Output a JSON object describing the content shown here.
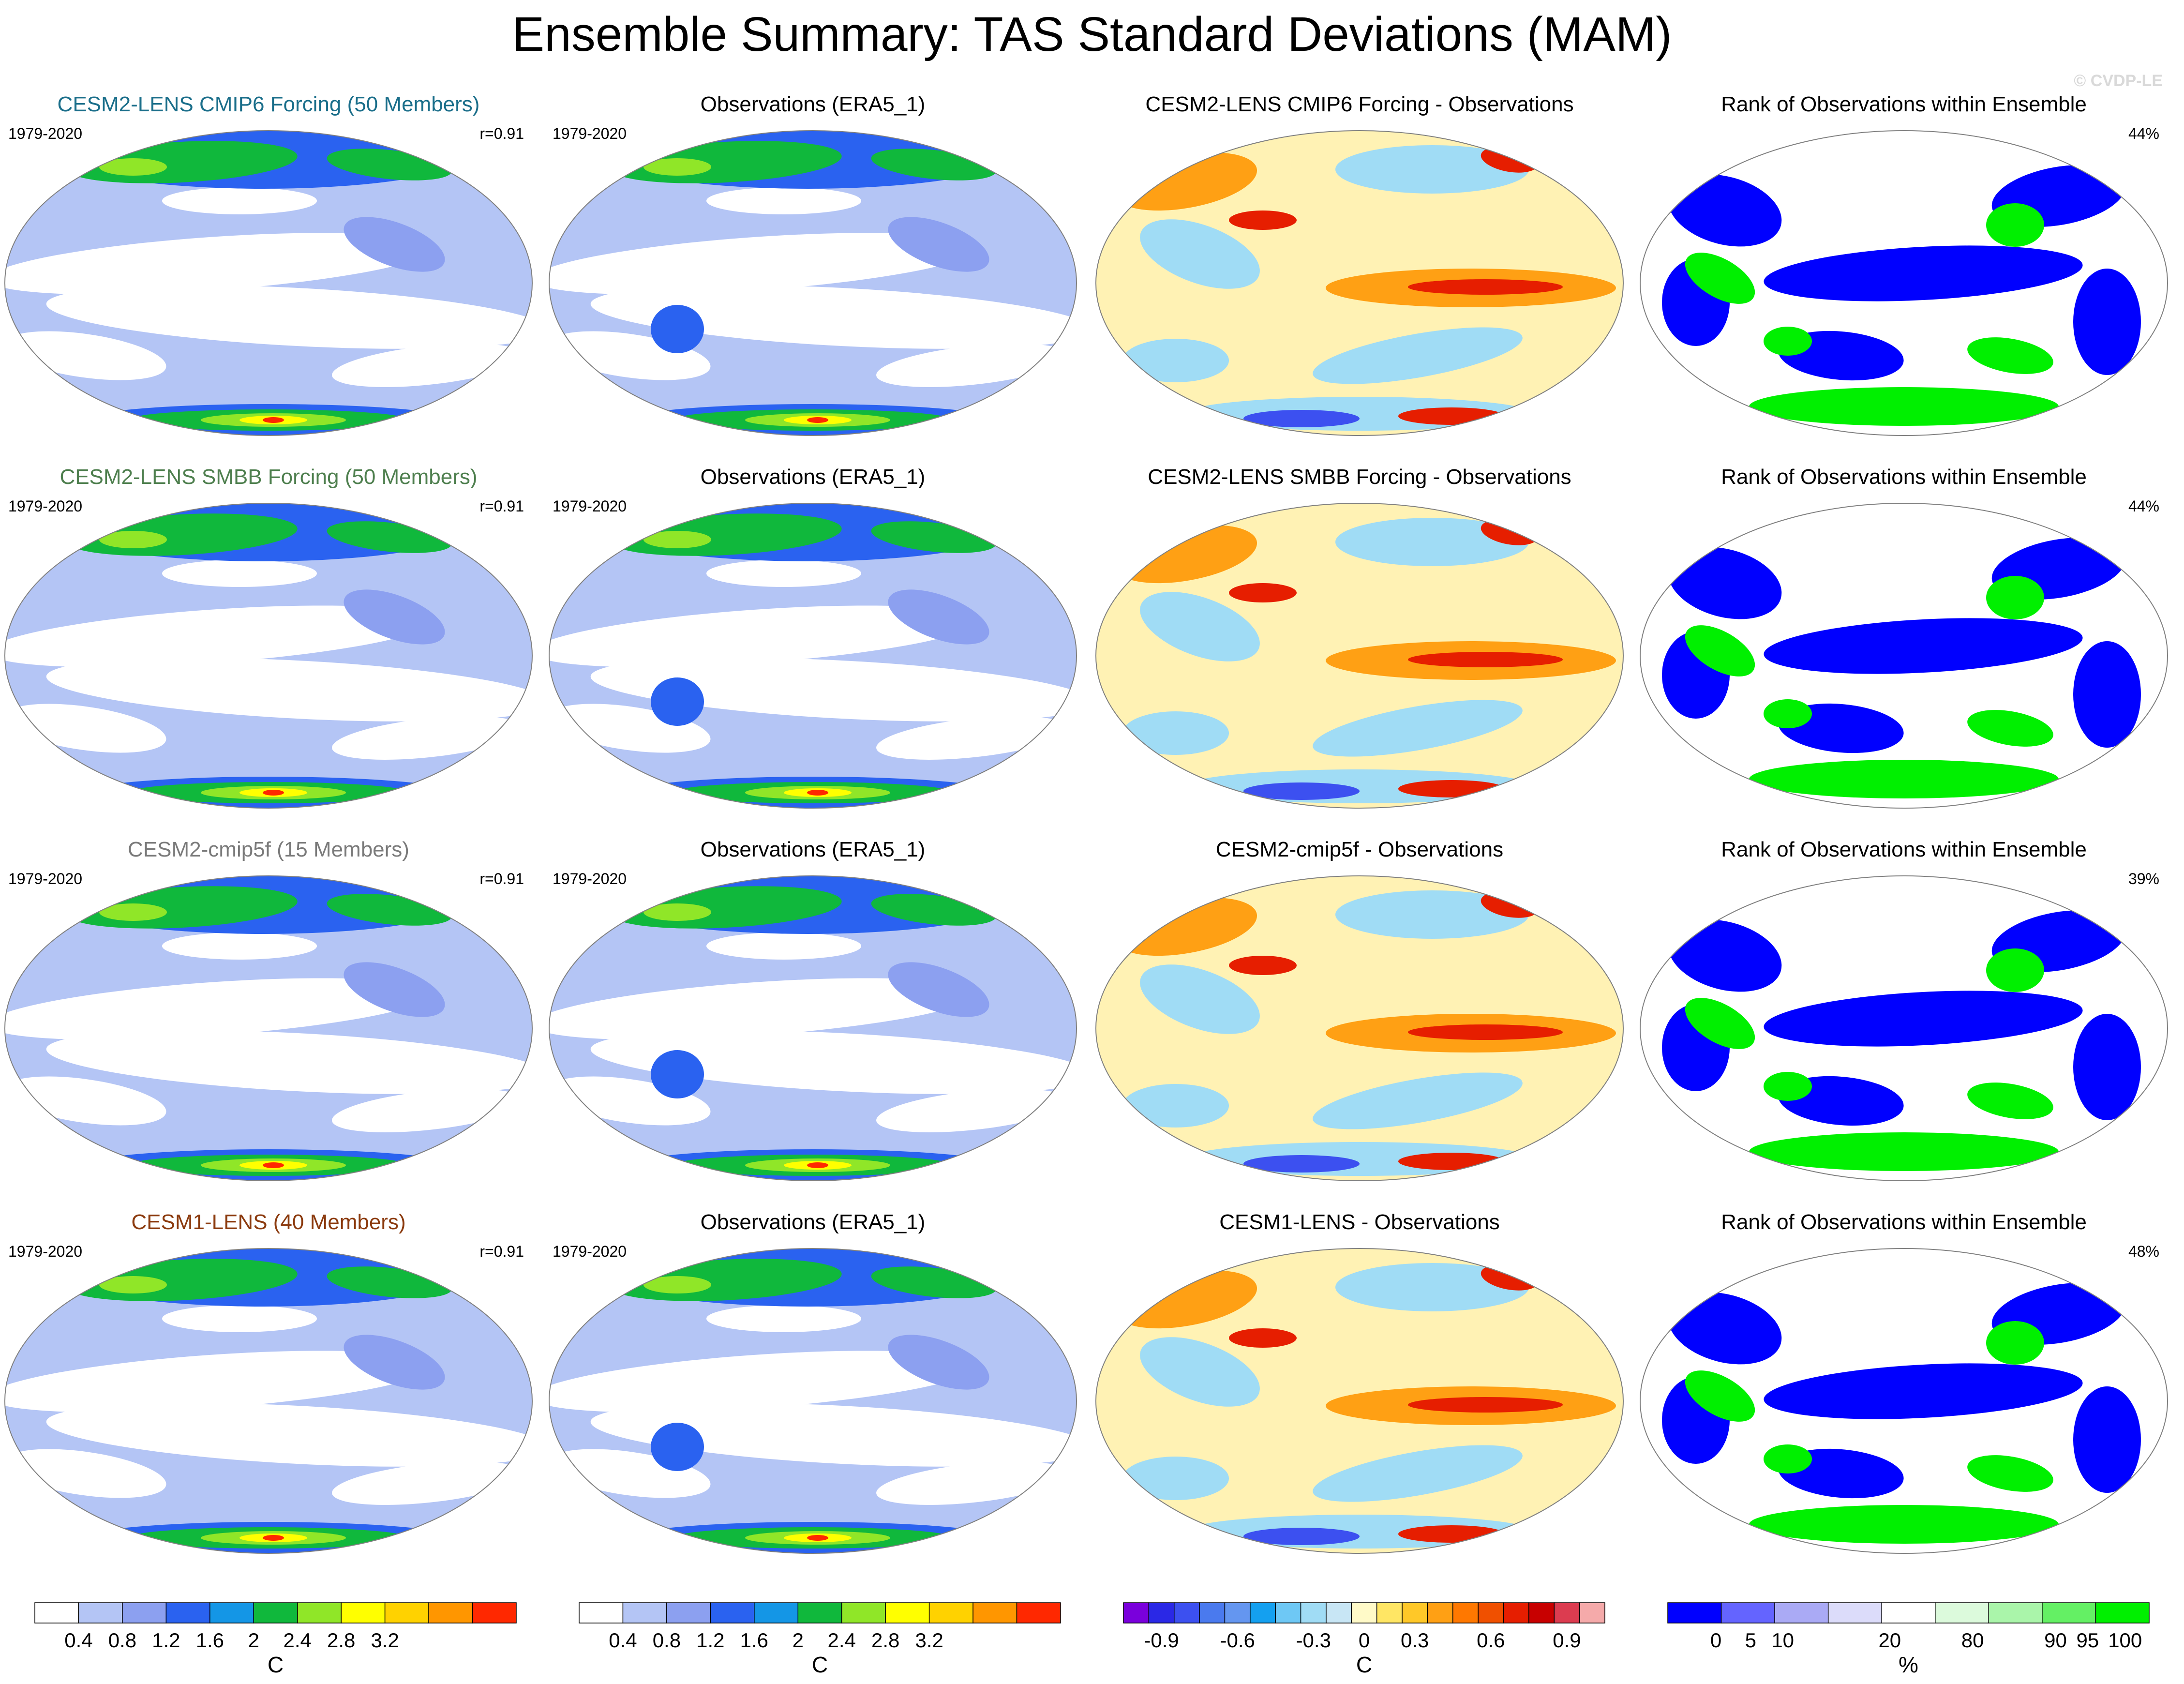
{
  "title": "Ensemble Summary: TAS Standard Deviations (MAM)",
  "watermark": "© CVDP-LE",
  "rows": [
    {
      "model_title": "CESM2-LENS CMIP6 Forcing (50 Members)",
      "model_title_color": "#1a6e8a",
      "obs_title": "Observations (ERA5_1)",
      "diff_title": "CESM2-LENS CMIP6 Forcing - Observations",
      "rank_title": "Rank of Observations within Ensemble",
      "years": "1979-2020",
      "obs_years": "1979-2020",
      "r": "r=0.91",
      "rank_pct": "44%"
    },
    {
      "model_title": "CESM2-LENS SMBB Forcing (50 Members)",
      "model_title_color": "#4e7f4e",
      "obs_title": "Observations (ERA5_1)",
      "diff_title": "CESM2-LENS SMBB Forcing - Observations",
      "rank_title": "Rank of Observations within Ensemble",
      "years": "1979-2020",
      "obs_years": "1979-2020",
      "r": "r=0.91",
      "rank_pct": "44%"
    },
    {
      "model_title": "CESM2-cmip5f (15 Members)",
      "model_title_color": "#7a7a7a",
      "obs_title": "Observations (ERA5_1)",
      "diff_title": "CESM2-cmip5f - Observations",
      "rank_title": "Rank of Observations within Ensemble",
      "years": "1979-2020",
      "obs_years": "1979-2020",
      "r": "r=0.91",
      "rank_pct": "39%"
    },
    {
      "model_title": "CESM1-LENS (40 Members)",
      "model_title_color": "#8b3a0e",
      "obs_title": "Observations (ERA5_1)",
      "diff_title": "CESM1-LENS - Observations",
      "rank_title": "Rank of Observations within Ensemble",
      "years": "1979-2020",
      "obs_years": "1979-2020",
      "r": "r=0.91",
      "rank_pct": "48%"
    }
  ],
  "colorbars": [
    {
      "unit": "C",
      "colors": [
        "#ffffff",
        "#b4c5f5",
        "#8ca0f0",
        "#2a62f0",
        "#1496e6",
        "#10b83c",
        "#90e628",
        "#ffff00",
        "#ffd200",
        "#ff9600",
        "#ff2800"
      ],
      "tick_labels": [
        "0.4",
        "0.8",
        "1.2",
        "1.6",
        "2",
        "2.4",
        "2.8",
        "3.2"
      ],
      "tick_positions": [
        1,
        2,
        3,
        4,
        5,
        6,
        7,
        8
      ]
    },
    {
      "unit": "C",
      "colors": [
        "#ffffff",
        "#b4c5f5",
        "#8ca0f0",
        "#2a62f0",
        "#1496e6",
        "#10b83c",
        "#90e628",
        "#ffff00",
        "#ffd200",
        "#ff9600",
        "#ff2800"
      ],
      "tick_labels": [
        "0.4",
        "0.8",
        "1.2",
        "1.6",
        "2",
        "2.4",
        "2.8",
        "3.2"
      ],
      "tick_positions": [
        1,
        2,
        3,
        4,
        5,
        6,
        7,
        8
      ]
    },
    {
      "unit": "C",
      "colors": [
        "#7a00dc",
        "#2a28e6",
        "#3c50f0",
        "#4a7aee",
        "#6496f0",
        "#14a0f0",
        "#6ec8f5",
        "#a0dcf5",
        "#c8e6f5",
        "#fffac8",
        "#ffe664",
        "#ffc828",
        "#ffa014",
        "#ff7800",
        "#f05000",
        "#e61e00",
        "#c80000",
        "#dc3c50",
        "#f5aaaa"
      ],
      "tick_labels": [
        "-0.9",
        "-0.6",
        "-0.3",
        "0",
        "0.3",
        "0.6",
        "0.9"
      ],
      "tick_positions": [
        1.5,
        4.5,
        7.5,
        9.5,
        11.5,
        14.5,
        17.5
      ]
    },
    {
      "unit": "%",
      "colors": [
        "#0000ff",
        "#6464ff",
        "#aaaaf5",
        "#dcdcfa",
        "#ffffff",
        "#dcfadc",
        "#aaf5aa",
        "#64f064",
        "#00f000"
      ],
      "tick_labels": [
        "0",
        "5",
        "10",
        "20",
        "80",
        "90",
        "95",
        "100"
      ],
      "tick_positions": [
        0.9,
        1.55,
        2.15,
        4.15,
        5.7,
        7.25,
        7.85,
        8.55
      ]
    }
  ],
  "map_palettes": {
    "stddev_bg": "#b4c5f5",
    "stddev_white": "#ffffff",
    "stddev_mid": "#8ca0f0",
    "stddev_blue": "#2a62f0",
    "stddev_green": "#10b83c",
    "stddev_lime": "#90e628",
    "stddev_yellow": "#ffff00",
    "stddev_red": "#ff2800",
    "diff_bg": "#fff2b4",
    "diff_orange": "#ffa014",
    "diff_red": "#e61e00",
    "diff_cyan": "#a0dcf5",
    "diff_blue": "#3c50f0",
    "rank_blue": "#0000ff",
    "rank_green": "#00f000",
    "rank_white": "#ffffff"
  }
}
